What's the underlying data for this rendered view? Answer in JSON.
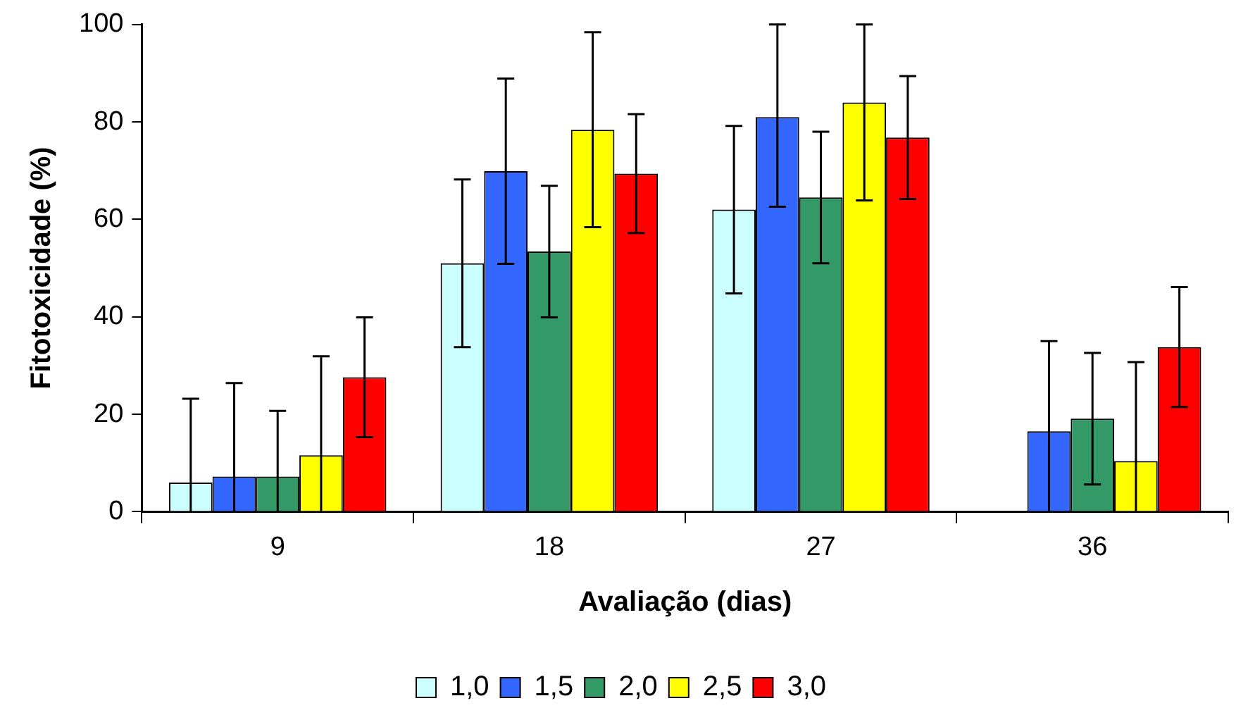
{
  "chart_data": {
    "type": "bar",
    "xlabel": "Avaliação (dias)",
    "ylabel": "Fitotoxicidade (%)",
    "categories": [
      "9",
      "18",
      "27",
      "36"
    ],
    "series": [
      {
        "name": "1,0",
        "color": "#ccffff",
        "values": [
          6.0,
          51.0,
          62.0,
          null
        ],
        "errors": [
          [
            0,
            23.2
          ],
          17.2,
          17.2,
          null
        ]
      },
      {
        "name": "1,5",
        "color": "#3366ff",
        "values": [
          7.2,
          69.9,
          81.0,
          16.5
        ],
        "errors": [
          [
            0,
            26.4
          ],
          19,
          [
            62.6,
            100
          ],
          [
            0,
            35.0
          ]
        ]
      },
      {
        "name": "2,0",
        "color": "#339966",
        "values": [
          7.2,
          53.4,
          64.5,
          19.1
        ],
        "errors": [
          [
            0,
            20.7
          ],
          13.5,
          13.5,
          13.5
        ]
      },
      {
        "name": "2,5",
        "color": "#ffff00",
        "values": [
          11.6,
          78.4,
          84.0,
          10.4
        ],
        "errors": [
          [
            0,
            31.9
          ],
          20,
          [
            63.9,
            100
          ],
          [
            0,
            30.7
          ]
        ]
      },
      {
        "name": "3,0",
        "color": "#ff0000",
        "values": [
          27.6,
          69.4,
          76.8,
          33.8
        ],
        "errors": [
          12.3,
          12.2,
          12.6,
          12.3
        ]
      }
    ],
    "ylim": [
      0,
      100
    ],
    "yticks": [
      0,
      20,
      40,
      60,
      80,
      100
    ],
    "grid": false,
    "legend": "bottom"
  }
}
